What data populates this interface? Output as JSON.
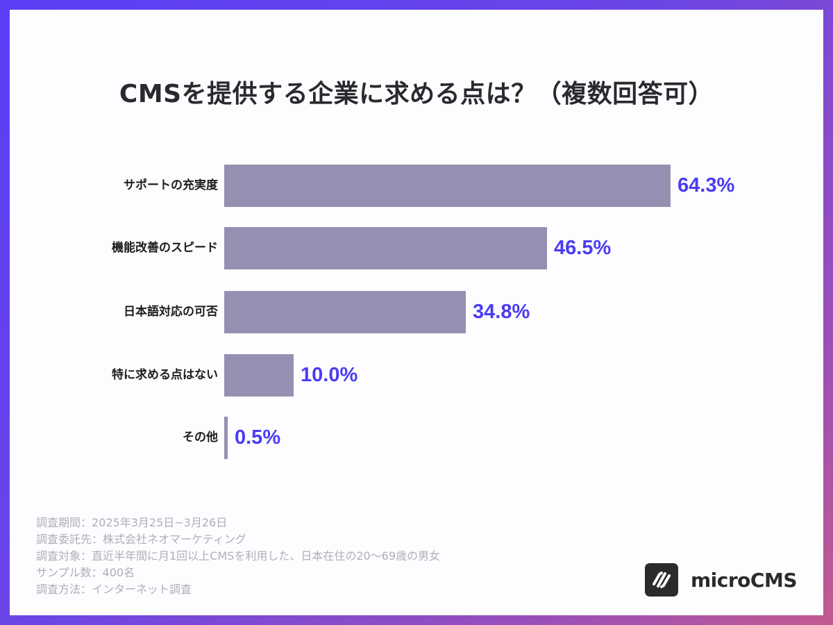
{
  "title": "CMSを提供する企業に求める点は？（複数回答可）",
  "chart_data": {
    "type": "bar",
    "orientation": "horizontal",
    "title": "CMSを提供する企業に求める点は？（複数回答可）",
    "categories": [
      "サポートの充実度",
      "機能改善のスピード",
      "日本語対応の可否",
      "特に求める点はない",
      "その他"
    ],
    "values": [
      64.3,
      46.5,
      34.8,
      10.0,
      0.5
    ],
    "value_labels": [
      "64.3%",
      "46.5%",
      "34.8%",
      "10.0%",
      "0.5%"
    ],
    "unit": "%",
    "xlabel": "",
    "ylabel": "",
    "xlim": [
      0,
      100
    ],
    "grid": false,
    "legend": null,
    "bar_color": "#9590b2",
    "value_color": "#4a3cf2"
  },
  "rows": [
    {
      "label": "サポートの充実度",
      "value": "64.3%",
      "pct": 64.3
    },
    {
      "label": "機能改善のスピード",
      "value": "46.5%",
      "pct": 46.5
    },
    {
      "label": "日本語対応の可否",
      "value": "34.8%",
      "pct": 34.8
    },
    {
      "label": "特に求める点はない",
      "value": "10.0%",
      "pct": 10.0
    },
    {
      "label": "その他",
      "value": "0.5%",
      "pct": 0.5
    }
  ],
  "notes": [
    "調査期間：2025年3月25日~3月26日",
    "調査委託先：株式会社ネオマーケティング",
    "調査対象：直近半年間に月1回以上CMSを利用した、日本在住の20〜69歳の男女",
    "サンプル数：400名",
    "調査方法：インターネット調査"
  ],
  "brand": {
    "name": "microCMS",
    "icon": "microcms-logo-icon"
  },
  "colors": {
    "border_start": "#5b3ff6",
    "border_end": "#c25a90",
    "accent": "#4a3cf2",
    "bar": "#9590b2",
    "title": "#2a2a2e"
  }
}
